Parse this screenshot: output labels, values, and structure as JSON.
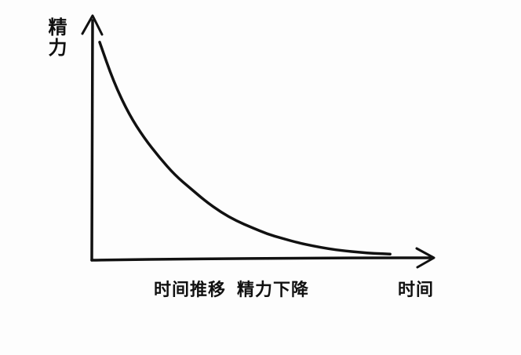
{
  "chart_data": {
    "type": "line",
    "title": "",
    "xlabel": "时间",
    "ylabel": "精力",
    "caption_left": "时间推移",
    "caption_right": "精力下降",
    "grid": false,
    "legend": "none",
    "series": [
      {
        "x": [
          0.05,
          0.5,
          1,
          1.5,
          2,
          2.5,
          3,
          3.5,
          4,
          4.5,
          5,
          5.5,
          6,
          6.5,
          7,
          7.5,
          8,
          8.5,
          9,
          9.5
        ],
        "y": [
          100,
          82,
          67,
          56,
          47,
          39,
          33,
          27,
          22,
          18,
          15,
          12,
          10,
          8,
          6.5,
          5.2,
          4.3,
          3.6,
          3.1,
          2.8
        ]
      }
    ],
    "xlim": [
      0,
      11
    ],
    "ylim": [
      0,
      110
    ],
    "line_color": "#111111"
  }
}
